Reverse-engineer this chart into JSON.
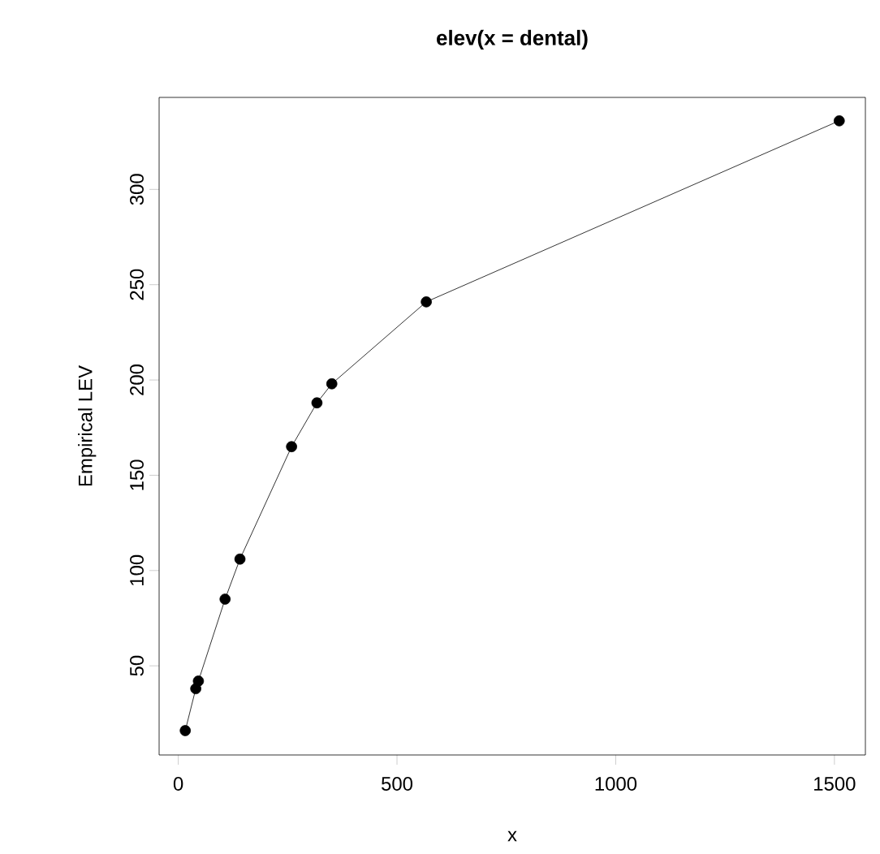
{
  "chart_data": {
    "type": "line",
    "title": "elev(x = dental)",
    "xlabel": "x",
    "ylabel": "Empirical LEV",
    "x": [
      16,
      40,
      46,
      107,
      141,
      259,
      317,
      351,
      567,
      1511
    ],
    "values": [
      16,
      38,
      42,
      85,
      106,
      165,
      188,
      198,
      241,
      336
    ],
    "color": "#000000",
    "marker": "circle",
    "line_style": "solid",
    "grid": false,
    "xlim": [
      -43.8,
      1570.8
    ],
    "ylim": [
      3.22,
      348.28
    ],
    "xticks": [
      0,
      500,
      1000,
      1500
    ],
    "yticks": [
      50,
      100,
      150,
      200,
      250,
      300
    ]
  }
}
